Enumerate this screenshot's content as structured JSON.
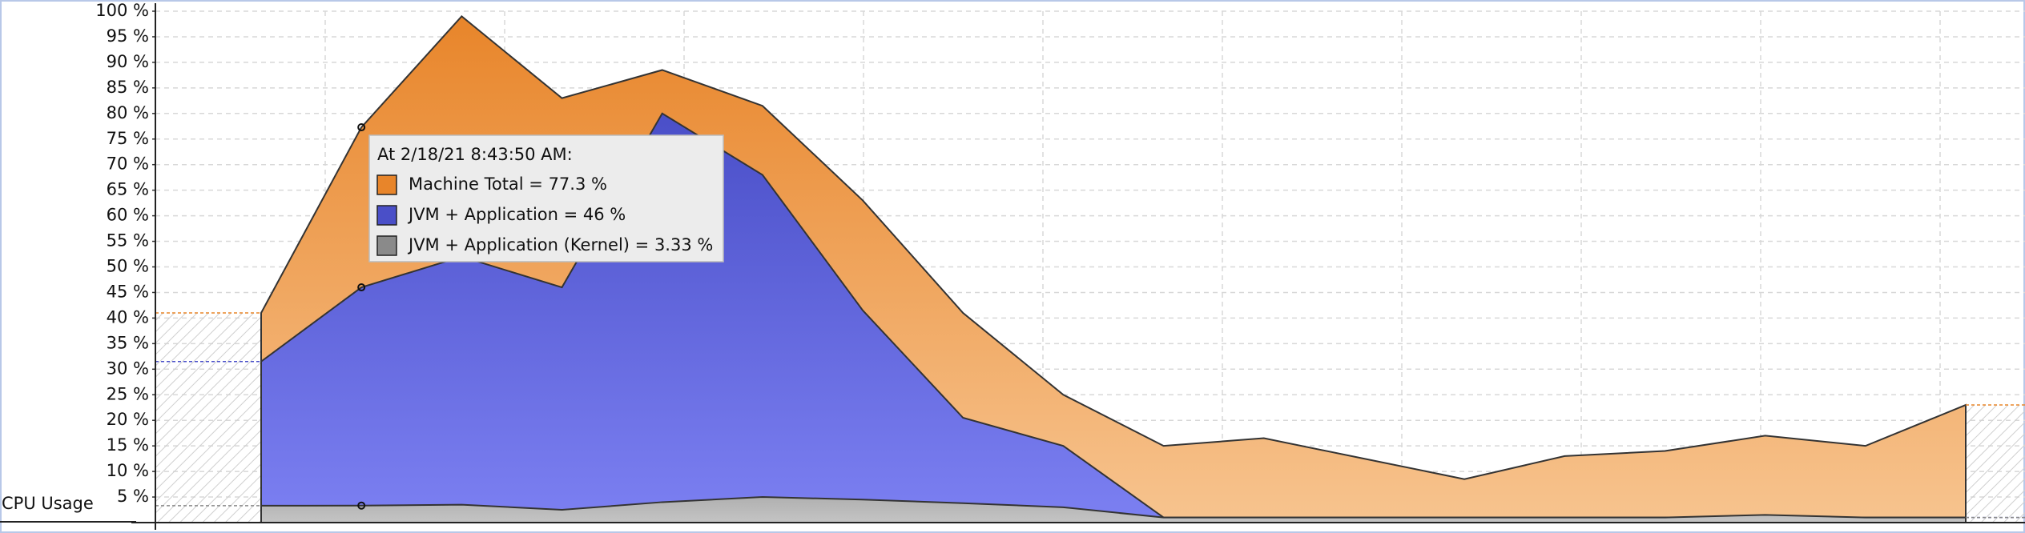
{
  "chart_data": {
    "type": "area",
    "y_label": "CPU Usage",
    "ylim": [
      0,
      100
    ],
    "yticks": [
      {
        "value": 5,
        "label": "5 %"
      },
      {
        "value": 10,
        "label": "10 %"
      },
      {
        "value": 15,
        "label": "15 %"
      },
      {
        "value": 20,
        "label": "20 %"
      },
      {
        "value": 25,
        "label": "25 %"
      },
      {
        "value": 30,
        "label": "30 %"
      },
      {
        "value": 35,
        "label": "35 %"
      },
      {
        "value": 40,
        "label": "40 %"
      },
      {
        "value": 45,
        "label": "45 %"
      },
      {
        "value": 50,
        "label": "50 %"
      },
      {
        "value": 55,
        "label": "55 %"
      },
      {
        "value": 60,
        "label": "60 %"
      },
      {
        "value": 65,
        "label": "65 %"
      },
      {
        "value": 70,
        "label": "70 %"
      },
      {
        "value": 75,
        "label": "75 %"
      },
      {
        "value": 80,
        "label": "80 %"
      },
      {
        "value": 85,
        "label": "85 %"
      },
      {
        "value": 90,
        "label": "90 %"
      },
      {
        "value": 95,
        "label": "95 %"
      },
      {
        "value": 100,
        "label": "100 %"
      }
    ],
    "grid": true,
    "series": [
      {
        "name": "Machine Total",
        "color": "#e8852a",
        "values": [
          41,
          77.3,
          99,
          83,
          88.5,
          81.5,
          63,
          41,
          25,
          15,
          16.5,
          12.5,
          8.5,
          13,
          14,
          17,
          15,
          23
        ]
      },
      {
        "name": "JVM + Application",
        "color": "#4a4fc8",
        "values": [
          31.5,
          46,
          52,
          46,
          80,
          68,
          41.5,
          20.5,
          15,
          1,
          1,
          1,
          1,
          1,
          1,
          1,
          1,
          1
        ]
      },
      {
        "name": "JVM + Application (Kernel)",
        "color": "#8a8a8a",
        "values": [
          3.3,
          3.33,
          3.5,
          2.5,
          4,
          5,
          4.5,
          3.8,
          3,
          1,
          1,
          1,
          1,
          1,
          1,
          1.5,
          1,
          1
        ]
      }
    ],
    "tooltip": {
      "title": "At 2/18/21 8:43:50 AM:",
      "entries": [
        "Machine Total = 77.3 %",
        "JVM + Application = 46 %",
        "JVM + Application (Kernel) = 3.33 %"
      ]
    }
  }
}
